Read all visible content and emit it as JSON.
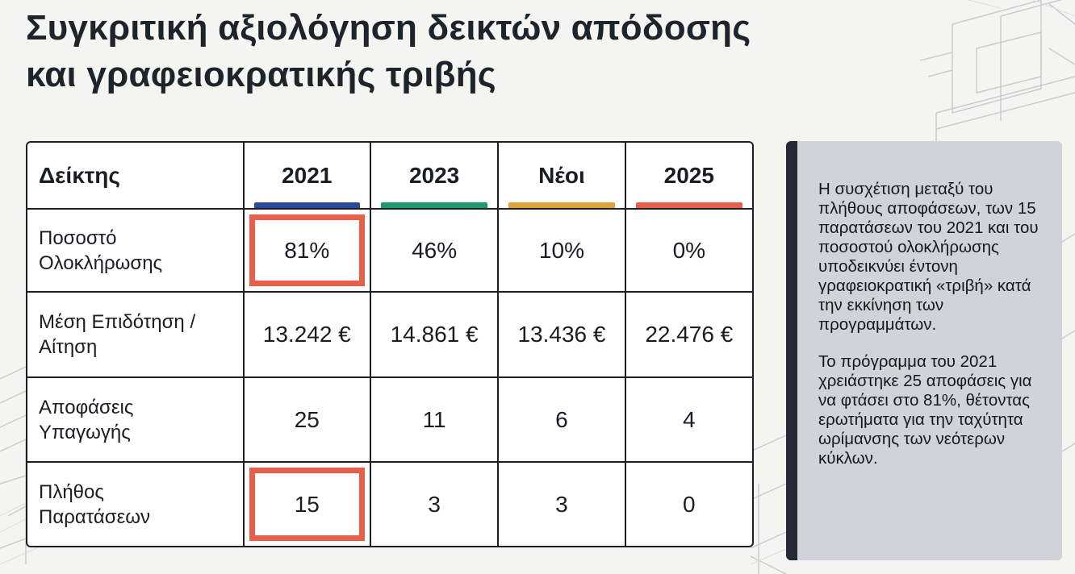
{
  "title": {
    "line1": "Συγκριτική αξιολόγηση δεικτών απόδοσης",
    "line2": "και γραφειοκρατικής τριβής"
  },
  "table": {
    "header": {
      "first": "Δείκτης",
      "columns": [
        {
          "label": "2021",
          "color": "#2b4a9a"
        },
        {
          "label": "2023",
          "color": "#1f9a6c"
        },
        {
          "label": "Νέοι",
          "color": "#e0a33a"
        },
        {
          "label": "2025",
          "color": "#e8604c"
        }
      ]
    },
    "rows": [
      {
        "label_line1": "Ποσοστό",
        "label_line2": "Ολοκλήρωσης",
        "values": [
          "81%",
          "46%",
          "10%",
          "0%"
        ],
        "highlighted_column": "2021"
      },
      {
        "label_line1": "Μέση Επιδότηση /",
        "label_line2": "Αίτηση",
        "values": [
          "13.242 €",
          "14.861 €",
          "13.436 €",
          "22.476 €"
        ]
      },
      {
        "label_line1": "Αποφάσεις",
        "label_line2": "Υπαγωγής",
        "values": [
          "25",
          "11",
          "6",
          "4"
        ]
      },
      {
        "label_line1": "Πλήθος",
        "label_line2": "Παρατάσεων",
        "values": [
          "15",
          "3",
          "3",
          "0"
        ],
        "highlighted_column": "2021"
      }
    ],
    "highlight_color": "#e8604c"
  },
  "sidebox": {
    "paragraph1": "Η συσχέτιση μεταξύ του πλήθους αποφάσεων, των 15 παρατάσεων του 2021 και του ποσοστού ολοκλήρωσης υποδεικνύει έντονη γραφειοκρατική «τριβή» κατά την εκκίνηση των προγραμμάτων.",
    "paragraph2": "Το πρόγραμμα του 2021 χρειάστηκε 25 αποφάσεις για να φτάσει στο 81%, θέτοντας ερωτήματα για την ταχύτητα ωρίμανσης των νεότερων κύκλων."
  },
  "background": {
    "color": "#f4f4f1",
    "sketch_color": "#c9ccd0"
  }
}
